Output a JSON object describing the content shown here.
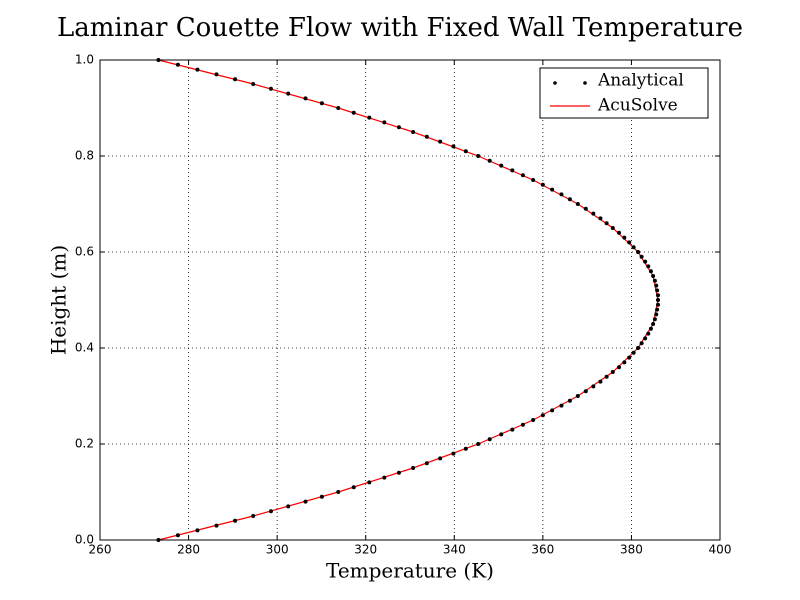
{
  "chart_data": {
    "type": "scatter",
    "title": "Laminar Couette Flow with Fixed Wall Temperature",
    "x_label": "Temperature (K)",
    "y_label": "Height (m)",
    "xlim": [
      260,
      400
    ],
    "ylim": [
      0,
      1.0
    ],
    "xticks": [
      260,
      280,
      300,
      320,
      340,
      360,
      380,
      400
    ],
    "yticks": [
      {
        "value": 0,
        "label": "0.0"
      },
      {
        "value": 0.2,
        "label": "0.2"
      },
      {
        "value": 0.4,
        "label": "0.4"
      },
      {
        "value": 0.6,
        "label": "0.6"
      },
      {
        "value": 0.8,
        "label": "0.8"
      },
      {
        "value": 1.0,
        "label": "1.0"
      }
    ],
    "grid": true,
    "legend": "upper right",
    "series": [
      {
        "name": "Analytical",
        "type": "scatter",
        "color": "#000000",
        "x": [
          273.2,
          277.6,
          282.0,
          286.3,
          290.5,
          294.6,
          298.6,
          302.5,
          306.4,
          310.1,
          313.8,
          317.3,
          320.8,
          324.2,
          327.5,
          330.7,
          333.8,
          336.8,
          339.8,
          342.6,
          345.4,
          348.0,
          350.6,
          353.1,
          355.5,
          357.8,
          360.0,
          362.1,
          364.2,
          366.1,
          367.9,
          369.7,
          371.4,
          373.0,
          374.4,
          375.8,
          377.2,
          378.4,
          379.5,
          380.5,
          381.5,
          382.3,
          383.1,
          383.8,
          384.4,
          384.9,
          385.3,
          385.6,
          385.8,
          386.0,
          386.0,
          386.0,
          385.8,
          385.6,
          385.3,
          384.9,
          384.4,
          383.8,
          383.1,
          382.3,
          381.5,
          380.5,
          379.5,
          378.4,
          377.2,
          375.8,
          374.4,
          373.0,
          371.4,
          369.7,
          367.9,
          366.1,
          364.2,
          362.1,
          360.0,
          357.8,
          355.5,
          353.1,
          350.6,
          348.0,
          345.4,
          342.6,
          339.8,
          336.8,
          333.8,
          330.7,
          327.5,
          324.2,
          320.8,
          317.3,
          313.8,
          310.1,
          306.4,
          302.5,
          298.6,
          294.6,
          290.5,
          286.3,
          282.0,
          277.6,
          273.2
        ],
        "y": [
          0,
          0.01,
          0.02,
          0.03,
          0.04,
          0.05,
          0.06,
          0.07,
          0.08,
          0.09,
          0.1,
          0.11,
          0.12,
          0.13,
          0.14,
          0.15,
          0.16,
          0.17,
          0.18,
          0.19,
          0.2,
          0.21,
          0.22,
          0.23,
          0.24,
          0.25,
          0.26,
          0.27,
          0.28,
          0.29,
          0.3,
          0.31,
          0.32,
          0.33,
          0.34,
          0.35,
          0.36,
          0.37,
          0.38,
          0.39,
          0.4,
          0.41,
          0.42,
          0.43,
          0.44,
          0.45,
          0.46,
          0.47,
          0.48,
          0.49,
          0.5,
          0.51,
          0.52,
          0.53,
          0.54,
          0.55,
          0.56,
          0.57,
          0.58,
          0.59,
          0.6,
          0.61,
          0.62,
          0.63,
          0.64,
          0.65,
          0.66,
          0.67,
          0.68,
          0.69,
          0.7,
          0.71,
          0.72,
          0.73,
          0.74,
          0.75,
          0.76,
          0.77,
          0.78,
          0.79,
          0.8,
          0.81,
          0.82,
          0.83,
          0.84,
          0.85,
          0.86,
          0.87,
          0.88,
          0.89,
          0.9,
          0.91,
          0.92,
          0.93,
          0.94,
          0.95,
          0.96,
          0.97,
          0.98,
          0.99,
          1.0
        ]
      },
      {
        "name": "AcuSolve",
        "type": "line",
        "color": "#ff0000",
        "x": [
          273.2,
          294.6,
          313.8,
          330.7,
          345.4,
          357.8,
          367.9,
          375.8,
          381.5,
          384.9,
          386.0,
          384.9,
          381.5,
          375.8,
          367.9,
          357.8,
          345.4,
          330.7,
          313.8,
          294.6,
          273.2
        ],
        "y": [
          0,
          0.05,
          0.1,
          0.15,
          0.2,
          0.25,
          0.3,
          0.35,
          0.4,
          0.45,
          0.5,
          0.55,
          0.6,
          0.65,
          0.7,
          0.75,
          0.8,
          0.85,
          0.9,
          0.95,
          1.0
        ]
      }
    ]
  }
}
